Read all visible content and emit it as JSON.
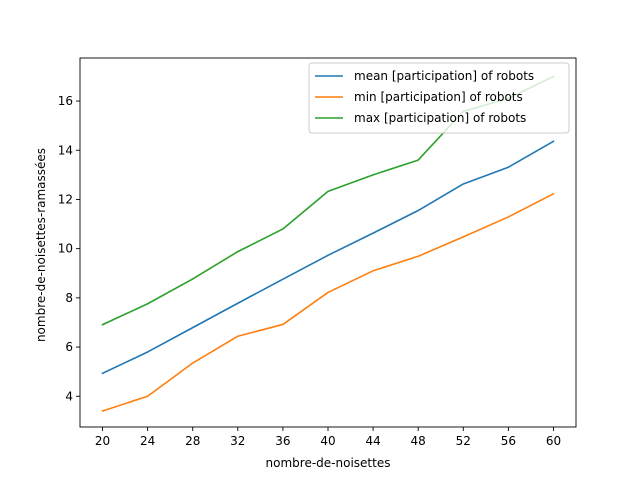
{
  "chart_data": {
    "type": "line",
    "title": "",
    "xlabel": "nombre-de-noisettes",
    "ylabel": "nombre-de-noisettes-ramassées",
    "x": [
      20,
      24,
      28,
      32,
      36,
      40,
      44,
      48,
      52,
      56,
      60
    ],
    "xlim": [
      18,
      62
    ],
    "ylim": [
      2.75,
      17.75
    ],
    "xticks": [
      "20",
      "24",
      "28",
      "32",
      "36",
      "40",
      "44",
      "48",
      "52",
      "56",
      "60"
    ],
    "yticks": [
      "4",
      "6",
      "8",
      "10",
      "12",
      "14",
      "16"
    ],
    "grid": false,
    "legend_position": "top-right",
    "series": [
      {
        "name": "mean [participation] of robots",
        "color": "#1f77b4",
        "values": [
          4.93,
          5.8,
          6.79,
          7.78,
          8.76,
          9.73,
          10.63,
          11.55,
          12.63,
          13.31,
          14.36
        ]
      },
      {
        "name": "min [participation] of robots",
        "color": "#ff7f0e",
        "values": [
          3.4,
          4.0,
          5.35,
          6.44,
          6.92,
          8.22,
          9.1,
          9.69,
          10.48,
          11.29,
          12.23
        ]
      },
      {
        "name": "max [participation] of robots",
        "color": "#2ca02c",
        "values": [
          6.91,
          7.76,
          8.77,
          9.88,
          10.8,
          12.33,
          13.0,
          13.6,
          15.58,
          16.11,
          17.0
        ]
      }
    ]
  }
}
